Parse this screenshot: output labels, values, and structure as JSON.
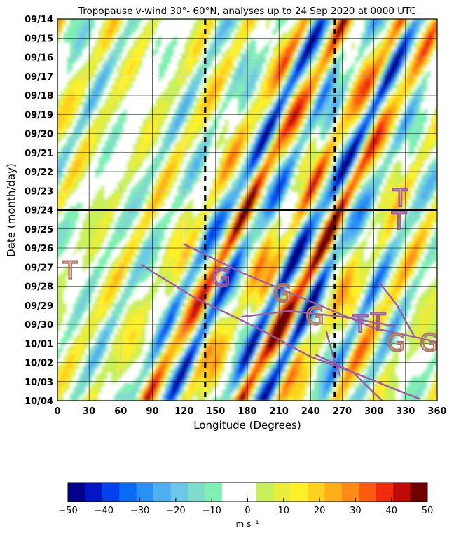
{
  "chart_data": {
    "type": "heatmap",
    "title": "Tropopause v-wind 30°- 60°N, analyses up to 24 Sep 2020 at 0000 UTC",
    "xlabel": "Longitude (Degrees)",
    "ylabel": "Date (month/day)",
    "x_ticks": [
      0,
      30,
      60,
      90,
      120,
      150,
      180,
      210,
      240,
      270,
      300,
      330,
      360
    ],
    "xlim": [
      0,
      360
    ],
    "y_ticks": [
      "09/14",
      "09/15",
      "09/16",
      "09/17",
      "09/18",
      "09/19",
      "09/20",
      "09/21",
      "09/22",
      "09/23",
      "09/24",
      "09/25",
      "09/26",
      "09/27",
      "09/28",
      "09/29",
      "09/30",
      "10/01",
      "10/02",
      "10/03",
      "10/04"
    ],
    "grid": true,
    "analysis_end_date": "09/24",
    "vertical_dashed_lines_longitude": [
      140,
      263
    ],
    "colorbar": {
      "label": "m s⁻¹",
      "min": -50,
      "max": 50,
      "ticks": [
        -50,
        -40,
        -30,
        -20,
        -10,
        0,
        10,
        20,
        30,
        40,
        50
      ],
      "orientation": "horizontal",
      "placement": "bottom",
      "colors": [
        "#00008a",
        "#0015c8",
        "#0042ee",
        "#0a6cf5",
        "#2a90f4",
        "#4fb0f0",
        "#6cc8e8",
        "#7edccd",
        "#7ff0b4",
        "#ffffff",
        "#ffffff",
        "#c8f05a",
        "#e8ee3a",
        "#fff02a",
        "#ffd21e",
        "#ffb018",
        "#ff8a14",
        "#ff5a10",
        "#f02c0c",
        "#c00a08",
        "#700000"
      ]
    },
    "annotations": [
      "T",
      "G",
      "G",
      "T",
      "G",
      "T",
      "G",
      "T",
      "G",
      "T"
    ]
  }
}
